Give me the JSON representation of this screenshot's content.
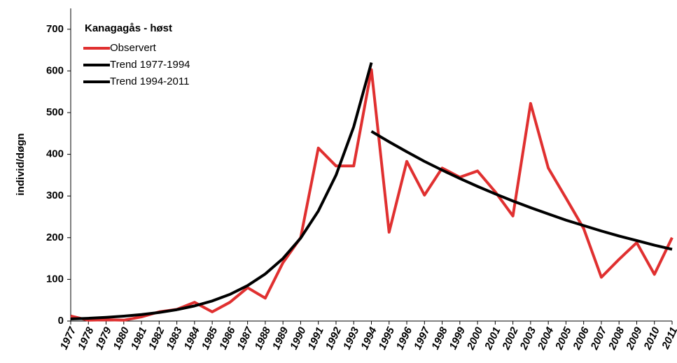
{
  "chart_data": {
    "type": "line",
    "legend_title": "Kanagagås - høst",
    "ylabel": "individ/døgn",
    "categories": [
      "1977",
      "1978",
      "1979",
      "1980",
      "1981",
      "1982",
      "1983",
      "1984",
      "1985",
      "1986",
      "1987",
      "1988",
      "1989",
      "1990",
      "1991",
      "1992",
      "1993",
      "1994",
      "1995",
      "1996",
      "1997",
      "1998",
      "1999",
      "2000",
      "2001",
      "2002",
      "2003",
      "2004",
      "2005",
      "2006",
      "2007",
      "2008",
      "2009",
      "2010",
      "2011"
    ],
    "series": [
      {
        "name": "Observert",
        "color": "#e03030",
        "width": 4,
        "values": [
          12,
          2,
          3,
          2,
          10,
          22,
          28,
          45,
          22,
          45,
          80,
          55,
          140,
          200,
          415,
          372,
          372,
          603,
          213,
          383,
          302,
          367,
          345,
          360,
          310,
          252,
          522,
          367,
          295,
          222,
          105,
          148,
          188,
          112,
          200
        ]
      },
      {
        "name": "Trend 1977-1994",
        "color": "#000000",
        "width": 4,
        "values": [
          5,
          6.6,
          8.8,
          11.7,
          15.5,
          20.6,
          27.3,
          36.3,
          48.2,
          64,
          85,
          113,
          150,
          199,
          264,
          350,
          466,
          620,
          null,
          null,
          null,
          null,
          null,
          null,
          null,
          null,
          null,
          null,
          null,
          null,
          null,
          null,
          null,
          null,
          null
        ]
      },
      {
        "name": "Trend 1994-2011",
        "color": "#000000",
        "width": 4,
        "values": [
          null,
          null,
          null,
          null,
          null,
          null,
          null,
          null,
          null,
          null,
          null,
          null,
          null,
          null,
          null,
          null,
          null,
          455,
          430,
          406,
          383,
          362,
          342,
          323,
          305,
          288,
          272,
          257,
          242,
          229,
          216,
          204,
          193,
          182,
          172
        ]
      }
    ],
    "ylim": [
      0,
      750
    ],
    "yticks": [
      0,
      100,
      200,
      300,
      400,
      500,
      600,
      700
    ],
    "grid": false,
    "legend": "upper left"
  }
}
